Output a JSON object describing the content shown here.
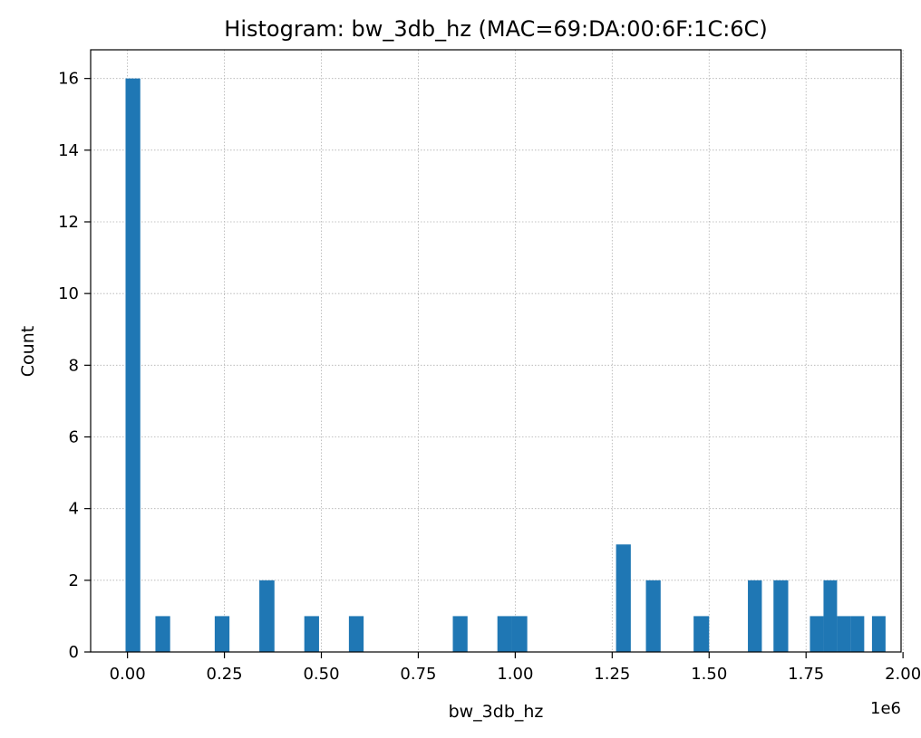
{
  "chart_data": {
    "type": "bar",
    "title": "Histogram: bw_3db_hz (MAC=69:DA:00:6F:1C:6C)",
    "xlabel": "bw_3db_hz",
    "ylabel": "Count",
    "x_offset_text": "1e6",
    "xlim": [
      -0.095,
      1.995
    ],
    "ylim": [
      0,
      16.8
    ],
    "x_ticks": [
      {
        "value": 0.0,
        "label": "0.00"
      },
      {
        "value": 0.25,
        "label": "0.25"
      },
      {
        "value": 0.5,
        "label": "0.50"
      },
      {
        "value": 0.75,
        "label": "0.75"
      },
      {
        "value": 1.0,
        "label": "1.00"
      },
      {
        "value": 1.25,
        "label": "1.25"
      },
      {
        "value": 1.5,
        "label": "1.50"
      },
      {
        "value": 1.75,
        "label": "1.75"
      },
      {
        "value": 2.0,
        "label": "2.00"
      }
    ],
    "y_ticks": [
      {
        "value": 0,
        "label": "0"
      },
      {
        "value": 2,
        "label": "2"
      },
      {
        "value": 4,
        "label": "4"
      },
      {
        "value": 6,
        "label": "6"
      },
      {
        "value": 8,
        "label": "8"
      },
      {
        "value": 10,
        "label": "10"
      },
      {
        "value": 12,
        "label": "12"
      },
      {
        "value": 14,
        "label": "14"
      },
      {
        "value": 16,
        "label": "16"
      }
    ],
    "grid": true,
    "bar_color": "#1f77b4",
    "bins": [
      {
        "x0": -0.005,
        "x1": 0.033,
        "count": 16
      },
      {
        "x0": 0.072,
        "x1": 0.11,
        "count": 1
      },
      {
        "x0": 0.225,
        "x1": 0.263,
        "count": 1
      },
      {
        "x0": 0.34,
        "x1": 0.379,
        "count": 2
      },
      {
        "x0": 0.456,
        "x1": 0.494,
        "count": 1
      },
      {
        "x0": 0.571,
        "x1": 0.609,
        "count": 1
      },
      {
        "x0": 0.839,
        "x1": 0.877,
        "count": 1
      },
      {
        "x0": 0.954,
        "x1": 0.992,
        "count": 1
      },
      {
        "x0": 0.992,
        "x1": 1.031,
        "count": 1
      },
      {
        "x0": 1.26,
        "x1": 1.298,
        "count": 3
      },
      {
        "x0": 1.337,
        "x1": 1.375,
        "count": 2
      },
      {
        "x0": 1.46,
        "x1": 1.5,
        "count": 1
      },
      {
        "x0": 1.6,
        "x1": 1.636,
        "count": 2
      },
      {
        "x0": 1.666,
        "x1": 1.704,
        "count": 2
      },
      {
        "x0": 1.76,
        "x1": 1.795,
        "count": 1
      },
      {
        "x0": 1.795,
        "x1": 1.83,
        "count": 2
      },
      {
        "x0": 1.83,
        "x1": 1.865,
        "count": 1
      },
      {
        "x0": 1.865,
        "x1": 1.9,
        "count": 1
      },
      {
        "x0": 1.92,
        "x1": 1.955,
        "count": 1
      }
    ]
  }
}
